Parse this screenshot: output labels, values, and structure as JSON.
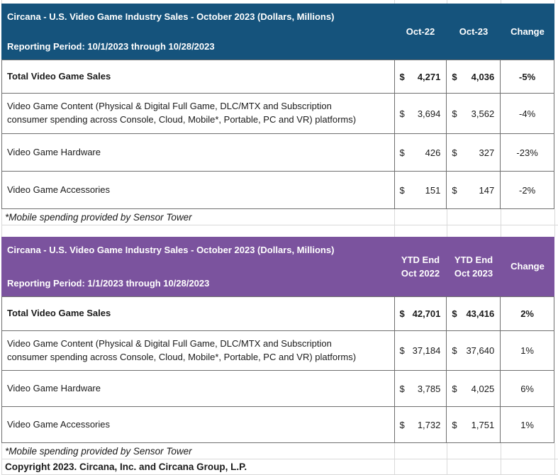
{
  "colors": {
    "header1-bg": "#15537C",
    "header2-bg": "#7B539E",
    "header-text": "#FFFFFF",
    "border-dark": "#6F6F6F",
    "border-light": "#D9D9D9",
    "body-text": "#1A1A1A"
  },
  "currency": "$",
  "table1": {
    "title": "Circana - U.S. Video Game Industry Sales - October 2023 (Dollars, Millions)",
    "reporting_period": "Reporting Period: 10/1/2023 through 10/28/2023",
    "columns": [
      "Oct-22",
      "Oct-23",
      "Change"
    ],
    "rows": [
      {
        "label": "Total Video Game Sales",
        "oct22": "4,271",
        "oct23": "4,036",
        "change": "-5%"
      },
      {
        "label": "Video Game Content (Physical & Digital Full Game, DLC/MTX and Subscription\nconsumer spending across Console, Cloud, Mobile*, Portable, PC and VR) platforms)",
        "oct22": "3,694",
        "oct23": "3,562",
        "change": "-4%"
      },
      {
        "label": "Video Game Hardware",
        "oct22": "426",
        "oct23": "327",
        "change": "-23%"
      },
      {
        "label": "Video Game Accessories",
        "oct22": "151",
        "oct23": "147",
        "change": "-2%"
      }
    ],
    "footnote": "*Mobile spending provided by Sensor Tower"
  },
  "table2": {
    "title": "Circana - U.S. Video Game Industry Sales - October 2023 (Dollars, Millions)",
    "reporting_period": "Reporting Period: 1/1/2023 through 10/28/2023",
    "columns": [
      "YTD End\nOct 2022",
      "YTD End\nOct 2023",
      "Change"
    ],
    "rows": [
      {
        "label": "Total Video Game Sales",
        "ytd22": "42,701",
        "ytd23": "43,416",
        "change": "2%"
      },
      {
        "label": "Video Game Content (Physical & Digital Full Game, DLC/MTX and Subscription\nconsumer spending across Console, Cloud, Mobile*, Portable, PC and VR) platforms)",
        "ytd22": "37,184",
        "ytd23": "37,640",
        "change": "1%"
      },
      {
        "label": "Video Game Hardware",
        "ytd22": "3,785",
        "ytd23": "4,025",
        "change": "6%"
      },
      {
        "label": "Video Game Accessories",
        "ytd22": "1,732",
        "ytd23": "1,751",
        "change": "1%"
      }
    ],
    "footnote": "*Mobile spending provided by Sensor Tower",
    "copyright": "Copyright 2023. Circana, Inc. and Circana Group, L.P."
  }
}
